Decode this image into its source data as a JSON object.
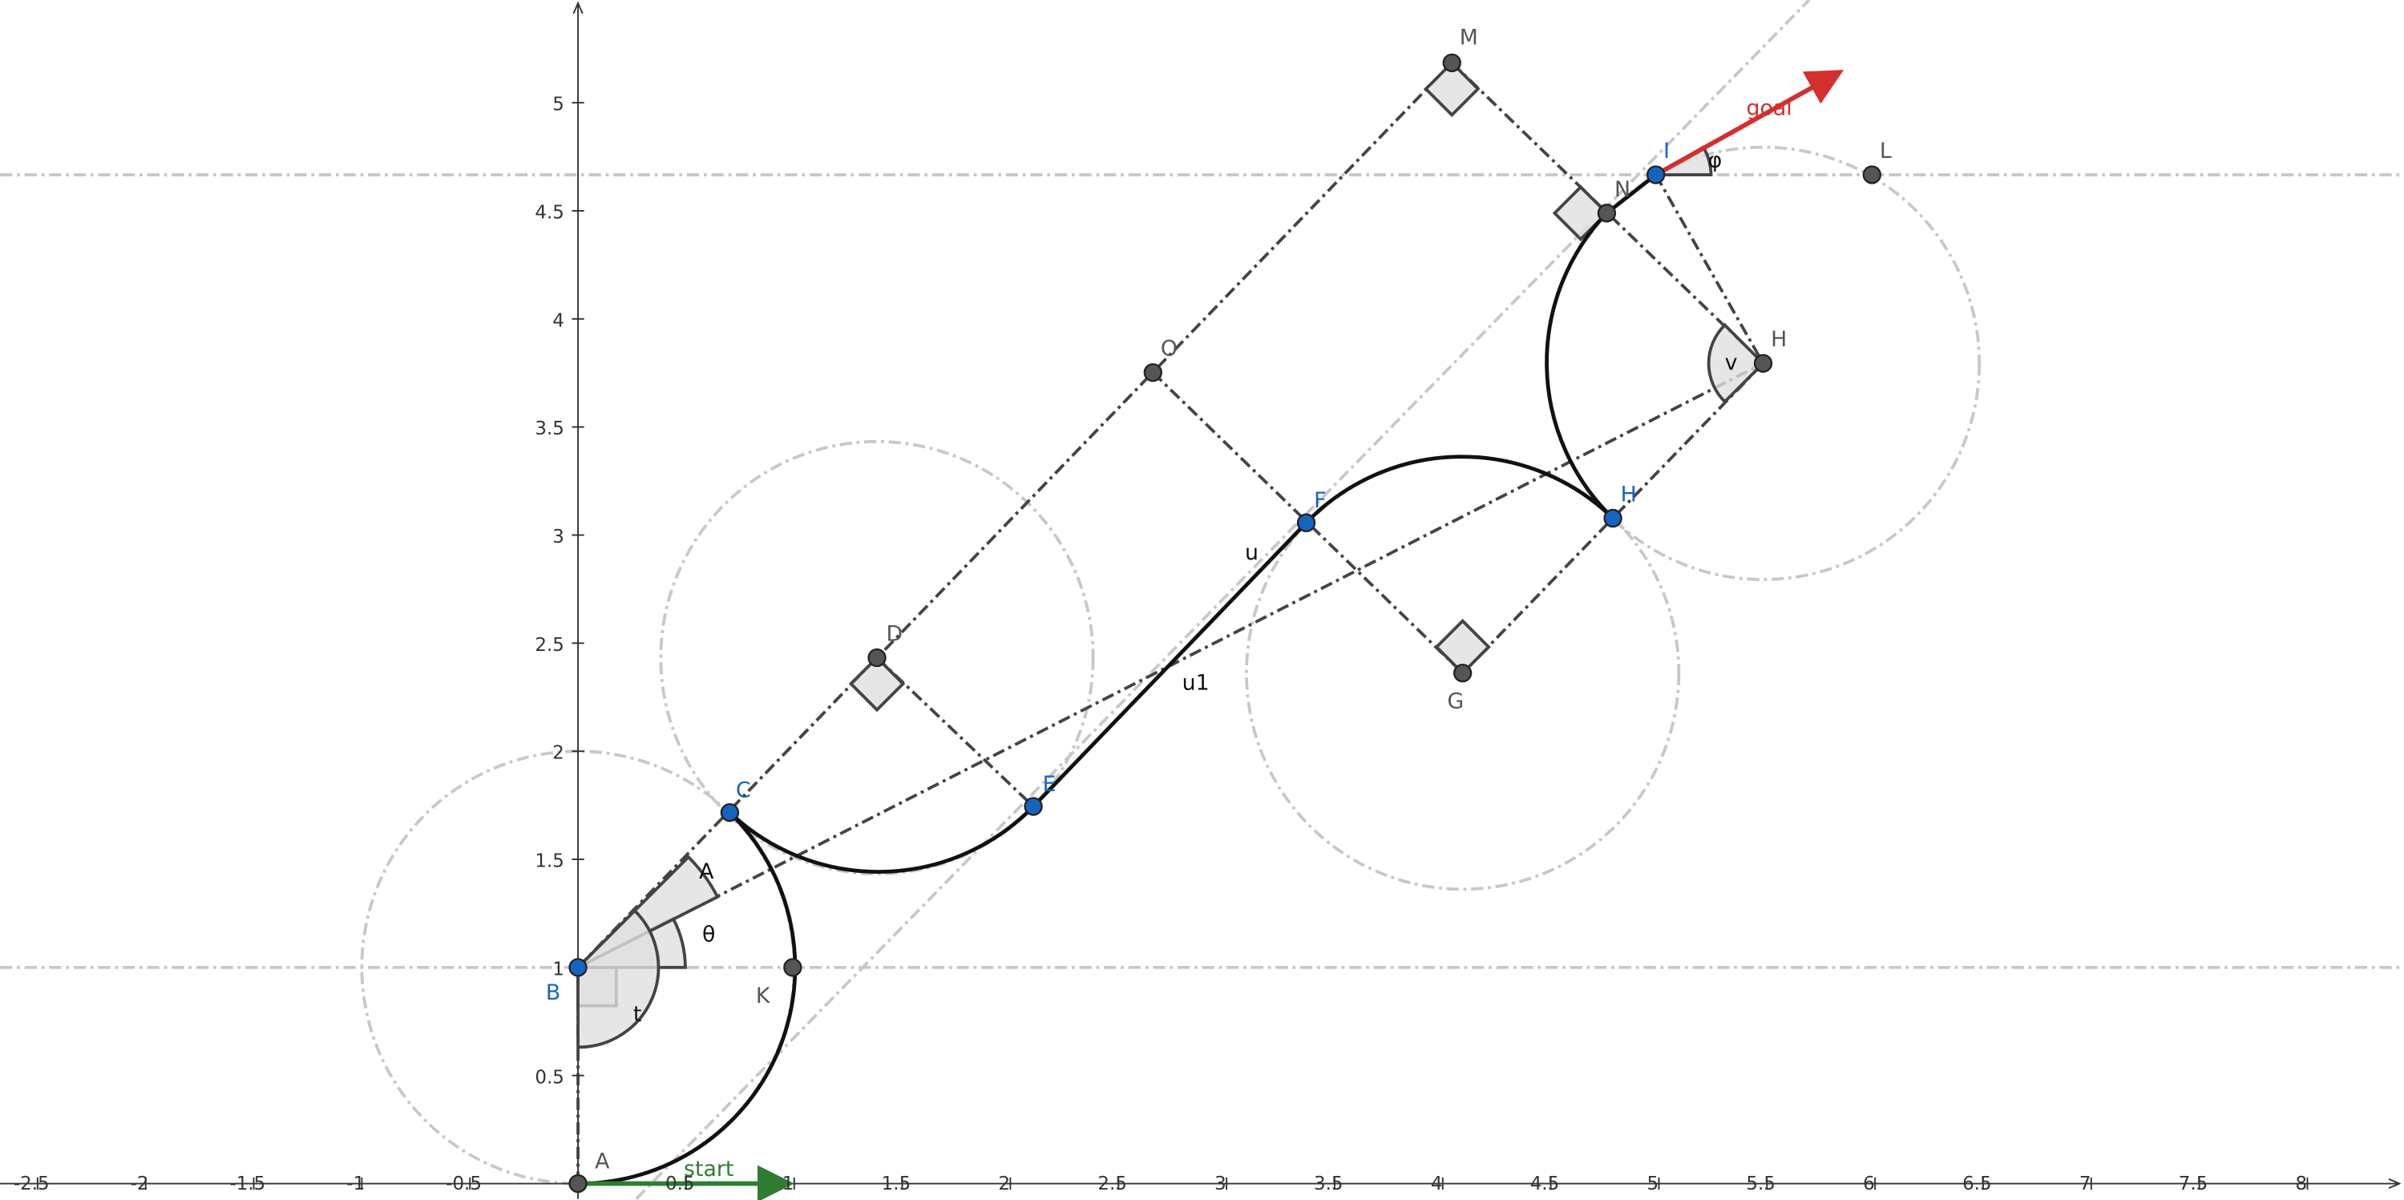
{
  "axes": {
    "x_ticks": [
      -2.5,
      -2,
      -1.5,
      -1,
      -0.5,
      0.5,
      1,
      1.5,
      2,
      2.5,
      3,
      3.5,
      4,
      4.5,
      5,
      5.5,
      6,
      6.5,
      7,
      7.5,
      8
    ],
    "y_ticks": [
      0.5,
      1,
      1.5,
      2,
      2.5,
      3,
      3.5,
      4,
      4.5,
      5
    ]
  },
  "points": [
    "A",
    "B",
    "C",
    "D",
    "E",
    "F",
    "G",
    "H",
    "H",
    "I",
    "K",
    "L",
    "M",
    "N",
    "O"
  ],
  "angles": [
    "A",
    "θ",
    "t",
    "v",
    "φ"
  ],
  "segments": [
    "u",
    "u1"
  ],
  "vectors": [
    "start",
    "goal"
  ]
}
